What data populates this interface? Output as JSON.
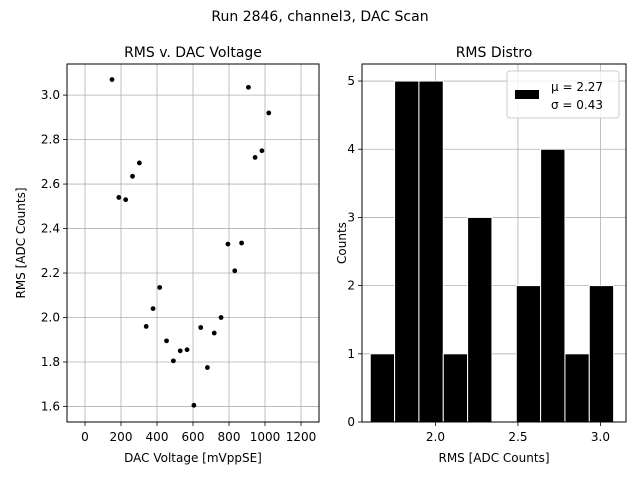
{
  "figure": {
    "suptitle": "Run 2846, channel3, DAC Scan"
  },
  "chart_data": [
    {
      "type": "scatter",
      "title": "RMS v. DAC Voltage",
      "xlabel": "DAC Voltage [mVppSE]",
      "ylabel": "RMS [ADC Counts]",
      "xlim": [
        -100,
        1300
      ],
      "ylim": [
        1.53,
        3.14
      ],
      "xticks": [
        0,
        200,
        400,
        600,
        800,
        1000,
        1200
      ],
      "yticks": [
        1.6,
        1.8,
        2.0,
        2.2,
        2.4,
        2.6,
        2.8,
        3.0
      ],
      "ytick_labels": [
        "1.6",
        "1.8",
        "2.0",
        "2.2",
        "2.4",
        "2.6",
        "2.8",
        "3.0"
      ],
      "grid": true,
      "marker_color": "#000000",
      "points": [
        {
          "x": 150,
          "y": 3.07
        },
        {
          "x": 188,
          "y": 2.54
        },
        {
          "x": 226,
          "y": 2.53
        },
        {
          "x": 264,
          "y": 2.635
        },
        {
          "x": 302,
          "y": 2.695
        },
        {
          "x": 340,
          "y": 1.96
        },
        {
          "x": 378,
          "y": 2.04
        },
        {
          "x": 415,
          "y": 2.135
        },
        {
          "x": 453,
          "y": 1.895
        },
        {
          "x": 491,
          "y": 1.805
        },
        {
          "x": 529,
          "y": 1.85
        },
        {
          "x": 567,
          "y": 1.855
        },
        {
          "x": 605,
          "y": 1.605
        },
        {
          "x": 643,
          "y": 1.955
        },
        {
          "x": 680,
          "y": 1.775
        },
        {
          "x": 718,
          "y": 1.93
        },
        {
          "x": 756,
          "y": 2.0
        },
        {
          "x": 794,
          "y": 2.33
        },
        {
          "x": 832,
          "y": 2.21
        },
        {
          "x": 870,
          "y": 2.335
        },
        {
          "x": 908,
          "y": 3.035
        },
        {
          "x": 945,
          "y": 2.72
        },
        {
          "x": 983,
          "y": 2.75
        },
        {
          "x": 1021,
          "y": 2.92
        }
      ]
    },
    {
      "type": "bar",
      "subtype": "histogram",
      "title": "RMS Distro",
      "xlabel": "RMS [ADC Counts]",
      "ylabel": "Counts",
      "xlim": [
        1.555,
        3.155
      ],
      "ylim": [
        0,
        5.25
      ],
      "xticks": [
        2.0,
        2.5,
        3.0
      ],
      "xtick_labels": [
        "2.0",
        "2.5",
        "3.0"
      ],
      "yticks": [
        0,
        1,
        2,
        3,
        4,
        5
      ],
      "grid": true,
      "bar_color": "#000000",
      "edge_color": "#ffffff",
      "bins": [
        {
          "from": 1.605,
          "to": 1.7525,
          "count": 1
        },
        {
          "from": 1.7525,
          "to": 1.9,
          "count": 5
        },
        {
          "from": 1.9,
          "to": 2.0475,
          "count": 5
        },
        {
          "from": 2.0475,
          "to": 2.195,
          "count": 1
        },
        {
          "from": 2.195,
          "to": 2.3425,
          "count": 3
        },
        {
          "from": 2.3425,
          "to": 2.49,
          "count": 0
        },
        {
          "from": 2.49,
          "to": 2.6375,
          "count": 2
        },
        {
          "from": 2.6375,
          "to": 2.785,
          "count": 4
        },
        {
          "from": 2.785,
          "to": 2.9325,
          "count": 1
        },
        {
          "from": 2.9325,
          "to": 3.08,
          "count": 2
        }
      ],
      "legend": {
        "placement": "top-right",
        "lines": [
          "μ = 2.27",
          "σ = 0.43"
        ]
      }
    }
  ]
}
